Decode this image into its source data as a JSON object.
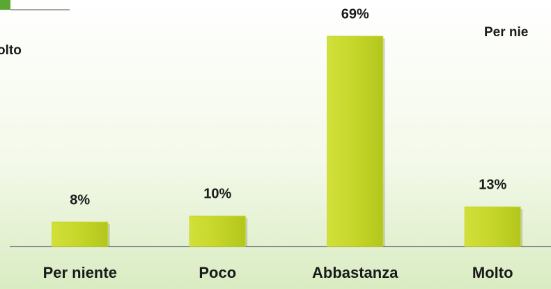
{
  "chart_data": {
    "type": "bar",
    "categories": [
      "Per niente",
      "Poco",
      "Abbastanza",
      "Molto"
    ],
    "values": [
      8,
      10,
      69,
      13
    ],
    "value_labels": [
      "8%",
      "10%",
      "69%",
      "13%"
    ],
    "color": "#c5d629",
    "fragments": [
      "olto",
      "Per nie"
    ]
  }
}
